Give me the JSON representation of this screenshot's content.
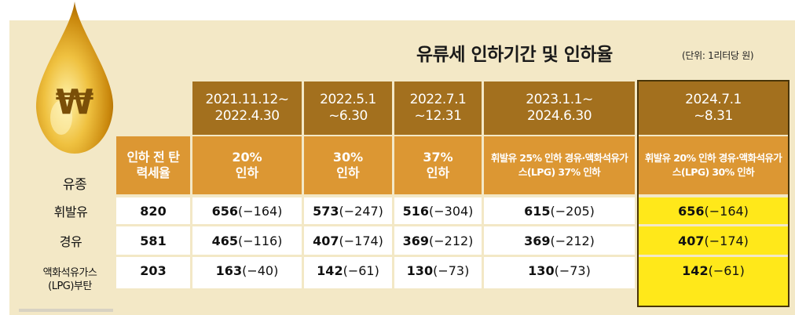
{
  "title": "유류세 인하기간 및 인하율",
  "unit": "(단위: 1리터당 원)",
  "drop_symbol": "₩",
  "row_header": "유종",
  "base_header": "인하 전 탄력세율",
  "periods": [
    {
      "period": "2021.11.12~ 2022.4.30",
      "rate": "20% 인하"
    },
    {
      "period": "2022.5.1 ~6.30",
      "rate": "30% 인하"
    },
    {
      "period": "2022.7.1 ~12.31",
      "rate": "37% 인하"
    },
    {
      "period": "2023.1.1~ 2024.6.30",
      "rate": "휘발유 25% 인하 경유·액화석유가스(LPG) 37% 인하"
    },
    {
      "period": "2024.7.1 ~8.31",
      "rate": "휘발유 20% 인하 경유·액화석유가스(LPG) 30% 인하"
    }
  ],
  "rows": [
    {
      "fuel": "휘발유",
      "base": "820",
      "values": [
        {
          "value": "656",
          "change": "(−164)"
        },
        {
          "value": "573",
          "change": "(−247)"
        },
        {
          "value": "516",
          "change": "(−304)"
        },
        {
          "value": "615",
          "change": "(−205)"
        },
        {
          "value": "656",
          "change": "(−164)"
        }
      ]
    },
    {
      "fuel": "경유",
      "base": "581",
      "values": [
        {
          "value": "465",
          "change": "(−116)"
        },
        {
          "value": "407",
          "change": "(−174)"
        },
        {
          "value": "369",
          "change": "(−212)"
        },
        {
          "value": "369",
          "change": "(−212)"
        },
        {
          "value": "407",
          "change": "(−174)"
        }
      ]
    },
    {
      "fuel": "액화석유가스 (LPG)부탄",
      "base": "203",
      "values": [
        {
          "value": "163",
          "change": "(−40)"
        },
        {
          "value": "142",
          "change": "(−61)"
        },
        {
          "value": "130",
          "change": "(−73)"
        },
        {
          "value": "130",
          "change": "(−73)"
        },
        {
          "value": "142",
          "change": "(−61)"
        }
      ]
    }
  ],
  "colors": {
    "panel": "#f3e8c6",
    "header_dark": "#a3701e",
    "header_orange": "#dc9733",
    "highlight": "#ffe81a"
  }
}
